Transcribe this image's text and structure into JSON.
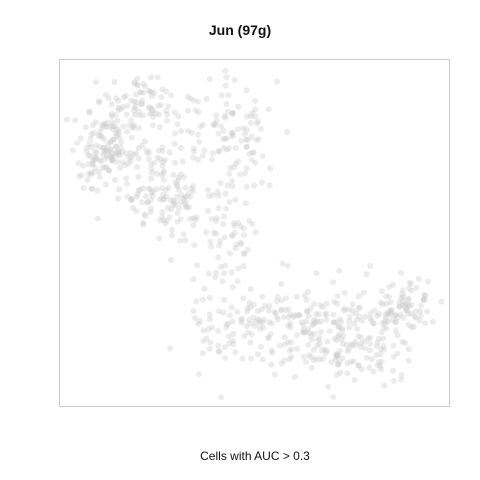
{
  "chart_data": {
    "type": "scatter",
    "title": "Jun (97g)",
    "xlabel": "Cells with AUC > 0.3",
    "ylabel": "",
    "axes_visible": false,
    "grid": false,
    "point_color": "#c8c8c8",
    "xlim": [
      0,
      100
    ],
    "ylim": [
      0,
      100
    ],
    "series": [
      {
        "values_note_count": 0,
        "points": []
      }
    ],
    "clusters": [
      {
        "x": 12,
        "y": 75,
        "sx": 4,
        "sy": 6,
        "n": 130
      },
      {
        "x": 20,
        "y": 88,
        "sx": 5,
        "sy": 4,
        "n": 70
      },
      {
        "x": 22,
        "y": 66,
        "sx": 6,
        "sy": 7,
        "n": 90
      },
      {
        "x": 32,
        "y": 58,
        "sx": 5,
        "sy": 6,
        "n": 60
      },
      {
        "x": 40,
        "y": 76,
        "sx": 4,
        "sy": 10,
        "n": 75
      },
      {
        "x": 50,
        "y": 74,
        "sx": 3,
        "sy": 8,
        "n": 40
      },
      {
        "x": 45,
        "y": 48,
        "sx": 4,
        "sy": 5,
        "n": 35
      },
      {
        "x": 42,
        "y": 25,
        "sx": 5,
        "sy": 8,
        "n": 70
      },
      {
        "x": 55,
        "y": 24,
        "sx": 6,
        "sy": 5,
        "n": 65
      },
      {
        "x": 66,
        "y": 22,
        "sx": 6,
        "sy": 7,
        "n": 80
      },
      {
        "x": 75,
        "y": 16,
        "sx": 6,
        "sy": 5,
        "n": 50
      },
      {
        "x": 80,
        "y": 26,
        "sx": 6,
        "sy": 5,
        "n": 55
      },
      {
        "x": 90,
        "y": 29,
        "sx": 4,
        "sy": 4,
        "n": 60
      },
      {
        "x": 84,
        "y": 13,
        "sx": 3,
        "sy": 4,
        "n": 25
      }
    ]
  }
}
